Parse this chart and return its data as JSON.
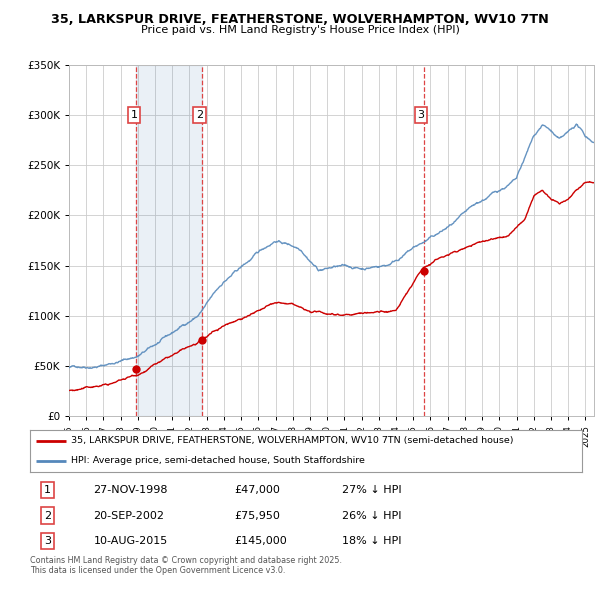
{
  "title_line1": "35, LARKSPUR DRIVE, FEATHERSTONE, WOLVERHAMPTON, WV10 7TN",
  "title_line2": "Price paid vs. HM Land Registry's House Price Index (HPI)",
  "ylim": [
    0,
    350000
  ],
  "yticks": [
    0,
    50000,
    100000,
    150000,
    200000,
    250000,
    300000,
    350000
  ],
  "xlim_start": 1995.0,
  "xlim_end": 2025.5,
  "sale_dates": [
    1998.917,
    2002.72,
    2015.608
  ],
  "sale_prices": [
    47000,
    75950,
    145000
  ],
  "sale_labels": [
    "1",
    "2",
    "3"
  ],
  "sale_info": [
    [
      "1",
      "27-NOV-1998",
      "£47,000",
      "27% ↓ HPI"
    ],
    [
      "2",
      "20-SEP-2002",
      "£75,950",
      "26% ↓ HPI"
    ],
    [
      "3",
      "10-AUG-2015",
      "£145,000",
      "18% ↓ HPI"
    ]
  ],
  "legend_line1": "35, LARKSPUR DRIVE, FEATHERSTONE, WOLVERHAMPTON, WV10 7TN (semi-detached house)",
  "legend_line2": "HPI: Average price, semi-detached house, South Staffordshire",
  "red_color": "#cc0000",
  "blue_color": "#5588bb",
  "blue_fill_color": "#ddeeff",
  "dashed_color": "#dd4444",
  "footer": "Contains HM Land Registry data © Crown copyright and database right 2025.\nThis data is licensed under the Open Government Licence v3.0.",
  "background_color": "#ffffff",
  "grid_color": "#cccccc"
}
